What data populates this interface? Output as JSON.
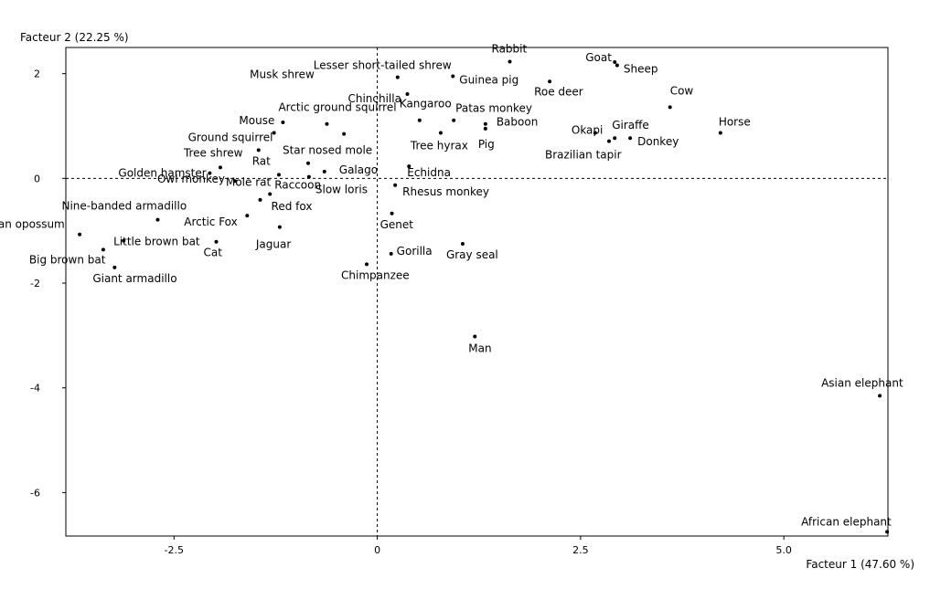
{
  "chart_data": {
    "type": "scatter",
    "xlabel": "Facteur 1 (47.60 %)",
    "ylabel": "Facteur 2 (22.25 %)",
    "xlim": [
      -3.83,
      6.28
    ],
    "ylim": [
      -6.83,
      2.5
    ],
    "xticks": [
      -2.5,
      0,
      2.5,
      5.0
    ],
    "xtick_labels": [
      "-2.5",
      "0",
      "2.5",
      "5.0"
    ],
    "yticks": [
      2,
      0,
      -2,
      -4,
      -6
    ],
    "ytick_labels": [
      "2",
      "0",
      "-2",
      "-4",
      "-6"
    ],
    "grid": false,
    "reference_lines": "dashed lines at x = 0 and y = 0",
    "points": [
      {
        "label": "Rabbit",
        "x": 1.63,
        "y": 2.23
      },
      {
        "label": "Goat",
        "x": 2.92,
        "y": 2.22
      },
      {
        "label": "Sheep",
        "x": 2.95,
        "y": 2.16
      },
      {
        "label": "Lesser short-tailed shrew",
        "x": 0.25,
        "y": 1.93
      },
      {
        "label": "Guinea pig",
        "x": 0.93,
        "y": 1.95
      },
      {
        "label": "Roe deer",
        "x": 2.12,
        "y": 1.85
      },
      {
        "label": "Musk shrew",
        "x": -0.41,
        "y": 0.85
      },
      {
        "label": "Chinchilla",
        "x": 0.37,
        "y": 1.61
      },
      {
        "label": "Cow",
        "x": 3.6,
        "y": 1.36
      },
      {
        "label": "Kangaroo",
        "x": 0.52,
        "y": 1.11
      },
      {
        "label": "Patas monkey",
        "x": 0.94,
        "y": 1.11
      },
      {
        "label": "Arctic ground squirrel",
        "x": -0.62,
        "y": 1.04
      },
      {
        "label": "Mouse",
        "x": -1.16,
        "y": 1.07
      },
      {
        "label": "Baboon",
        "x": 1.33,
        "y": 1.04
      },
      {
        "label": "Pig",
        "x": 1.33,
        "y": 0.95
      },
      {
        "label": "Okapi",
        "x": 2.68,
        "y": 0.87
      },
      {
        "label": "Giraffe",
        "x": 2.92,
        "y": 0.77
      },
      {
        "label": "Horse",
        "x": 4.22,
        "y": 0.87
      },
      {
        "label": "Donkey",
        "x": 3.11,
        "y": 0.77
      },
      {
        "label": "Brazilian tapir",
        "x": 2.85,
        "y": 0.71
      },
      {
        "label": "Tree hyrax",
        "x": 0.78,
        "y": 0.87
      },
      {
        "label": "Ground squirrel",
        "x": -1.27,
        "y": 0.87
      },
      {
        "label": "Tree shrew",
        "x": -1.93,
        "y": 0.21
      },
      {
        "label": "Star nosed mole",
        "x": -0.85,
        "y": 0.29
      },
      {
        "label": "Rat",
        "x": -1.46,
        "y": 0.54
      },
      {
        "label": "Golden hamster",
        "x": -2.06,
        "y": 0.1
      },
      {
        "label": "Galago",
        "x": -0.65,
        "y": 0.13
      },
      {
        "label": "Echidna",
        "x": 0.39,
        "y": 0.23
      },
      {
        "label": "Owl monkey",
        "x": -1.75,
        "y": -0.05
      },
      {
        "label": "Mole rat",
        "x": -1.21,
        "y": 0.07
      },
      {
        "label": "Slow loris",
        "x": -0.84,
        "y": 0.03
      },
      {
        "label": "Rhesus monkey",
        "x": 0.22,
        "y": -0.13
      },
      {
        "label": "Raccoon",
        "x": -1.32,
        "y": -0.3
      },
      {
        "label": "Nine-banded armadillo",
        "x": -2.7,
        "y": -0.79
      },
      {
        "label": "Arctic Fox",
        "x": -1.6,
        "y": -0.71
      },
      {
        "label": "Red fox",
        "x": -1.44,
        "y": -0.41
      },
      {
        "label": "Genet",
        "x": 0.18,
        "y": -0.67
      },
      {
        "label": "N. American opossum",
        "x": -3.66,
        "y": -1.07
      },
      {
        "label": "Big brown bat",
        "x": -3.37,
        "y": -1.36
      },
      {
        "label": "Little brown bat",
        "x": -3.12,
        "y": -1.19
      },
      {
        "label": "Cat",
        "x": -1.98,
        "y": -1.21
      },
      {
        "label": "Jaguar",
        "x": -1.2,
        "y": -0.93
      },
      {
        "label": "Gorilla",
        "x": 0.17,
        "y": -1.44
      },
      {
        "label": "Gray seal",
        "x": 1.05,
        "y": -1.25
      },
      {
        "label": "Giant armadillo",
        "x": -3.23,
        "y": -1.7
      },
      {
        "label": "Chimpanzee",
        "x": -0.13,
        "y": -1.64
      },
      {
        "label": "Man",
        "x": 1.2,
        "y": -3.02
      },
      {
        "label": "Asian elephant",
        "x": 6.18,
        "y": -4.15
      },
      {
        "label": "African elephant",
        "x": 6.27,
        "y": -6.75
      }
    ]
  }
}
